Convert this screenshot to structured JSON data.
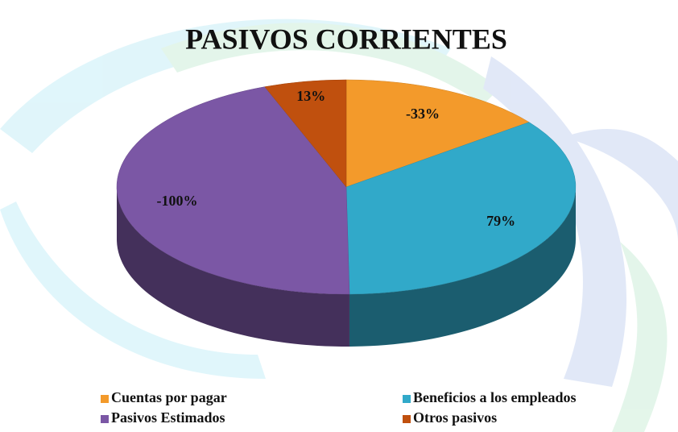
{
  "chart_data": {
    "type": "pie",
    "title": "PASIVOS CORRIENTES",
    "categories": [
      "Cuentas por pagar",
      "Beneficios a los empleados",
      "Pasivos Estimados",
      "Otros pasivos"
    ],
    "values": [
      -33,
      79,
      -100,
      13
    ],
    "value_labels": [
      "-33%",
      "79%",
      "-100%",
      "13%"
    ],
    "colors": [
      "#f39a2b",
      "#31a9c9",
      "#7b57a5",
      "#c0500e"
    ],
    "legend": "bottom"
  }
}
